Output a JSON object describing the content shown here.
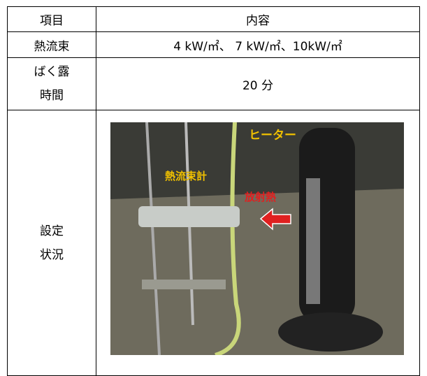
{
  "table": {
    "header": [
      "項目",
      "内容"
    ],
    "rows": [
      [
        "熱流束",
        "4 kW/㎡、 7 kW/㎡、10kW/㎡"
      ],
      [
        "ばく露 時間",
        "20 分"
      ],
      [
        "設定 状況",
        ""
      ]
    ]
  },
  "photo": {
    "labels": {
      "heater": "ヒーター",
      "sensor": "熱流束計",
      "radiant": "放射熱"
    }
  }
}
